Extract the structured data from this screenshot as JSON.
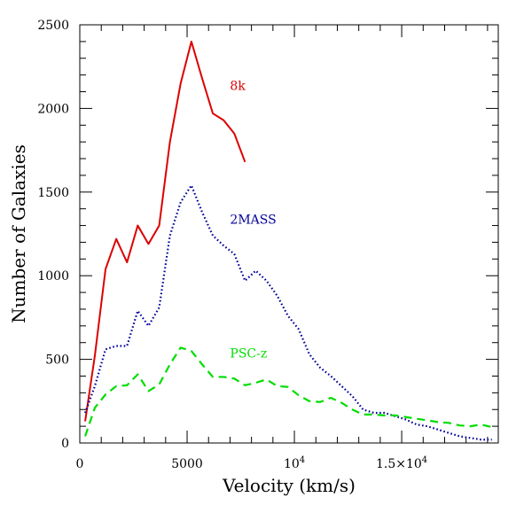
{
  "chart_data": {
    "type": "line",
    "title": "",
    "xlabel": "Velocity (km/s)",
    "ylabel": "Number of Galaxies",
    "xlim": [
      0,
      19500
    ],
    "ylim": [
      0,
      2500
    ],
    "x_major_ticks": [
      {
        "value": 0,
        "label": "0"
      },
      {
        "value": 5000,
        "label": "5000"
      },
      {
        "value": 10000,
        "label": "10",
        "sup": "4"
      },
      {
        "value": 15000,
        "label": "1.5×10",
        "sup": "4"
      }
    ],
    "y_major_ticks": [
      {
        "value": 0,
        "label": "0"
      },
      {
        "value": 500,
        "label": "500"
      },
      {
        "value": 1000,
        "label": "1000"
      },
      {
        "value": 1500,
        "label": "1500"
      },
      {
        "value": 2000,
        "label": "2000"
      },
      {
        "value": 2500,
        "label": "2500"
      }
    ],
    "x_minor_step": 1000,
    "y_minor_step": 100,
    "grid": false,
    "series": [
      {
        "name": "8k",
        "color": "#dd0000",
        "style": "solid",
        "label_at": {
          "x": 7000,
          "y": 2110
        },
        "points": [
          [
            250,
            130
          ],
          [
            700,
            520
          ],
          [
            1200,
            1040
          ],
          [
            1700,
            1220
          ],
          [
            2200,
            1080
          ],
          [
            2700,
            1300
          ],
          [
            3200,
            1190
          ],
          [
            3700,
            1300
          ],
          [
            4200,
            1800
          ],
          [
            4700,
            2150
          ],
          [
            5200,
            2400
          ],
          [
            5700,
            2180
          ],
          [
            6200,
            1970
          ],
          [
            6700,
            1930
          ],
          [
            7200,
            1850
          ],
          [
            7700,
            1680
          ]
        ]
      },
      {
        "name": "2MASS",
        "color": "#000099",
        "style": "dotted",
        "label_at": {
          "x": 7000,
          "y": 1310
        },
        "points": [
          [
            250,
            180
          ],
          [
            700,
            340
          ],
          [
            1200,
            560
          ],
          [
            1700,
            580
          ],
          [
            2200,
            580
          ],
          [
            2700,
            790
          ],
          [
            3200,
            700
          ],
          [
            3700,
            810
          ],
          [
            4200,
            1240
          ],
          [
            4700,
            1440
          ],
          [
            5200,
            1540
          ],
          [
            5700,
            1380
          ],
          [
            6200,
            1240
          ],
          [
            6700,
            1180
          ],
          [
            7200,
            1130
          ],
          [
            7700,
            970
          ],
          [
            8200,
            1030
          ],
          [
            8700,
            970
          ],
          [
            9200,
            880
          ],
          [
            9700,
            760
          ],
          [
            10200,
            680
          ],
          [
            10700,
            530
          ],
          [
            11200,
            450
          ],
          [
            11700,
            400
          ],
          [
            12200,
            340
          ],
          [
            12700,
            280
          ],
          [
            13200,
            200
          ],
          [
            13700,
            180
          ],
          [
            14200,
            180
          ],
          [
            14700,
            160
          ],
          [
            15200,
            140
          ],
          [
            15700,
            110
          ],
          [
            16200,
            100
          ],
          [
            16700,
            80
          ],
          [
            17200,
            60
          ],
          [
            17700,
            40
          ],
          [
            18200,
            30
          ],
          [
            18700,
            20
          ],
          [
            19200,
            20
          ]
        ]
      },
      {
        "name": "PSC-z",
        "color": "#00dd00",
        "style": "dashed",
        "label_at": {
          "x": 7000,
          "y": 510
        },
        "points": [
          [
            250,
            40
          ],
          [
            700,
            210
          ],
          [
            1200,
            290
          ],
          [
            1700,
            340
          ],
          [
            2200,
            345
          ],
          [
            2700,
            410
          ],
          [
            3200,
            310
          ],
          [
            3700,
            350
          ],
          [
            4200,
            470
          ],
          [
            4700,
            570
          ],
          [
            5200,
            550
          ],
          [
            5700,
            470
          ],
          [
            6200,
            395
          ],
          [
            6700,
            395
          ],
          [
            7200,
            385
          ],
          [
            7700,
            345
          ],
          [
            8200,
            360
          ],
          [
            8700,
            380
          ],
          [
            9200,
            340
          ],
          [
            9700,
            335
          ],
          [
            10200,
            285
          ],
          [
            10700,
            250
          ],
          [
            11200,
            245
          ],
          [
            11700,
            270
          ],
          [
            12200,
            240
          ],
          [
            12700,
            200
          ],
          [
            13200,
            170
          ],
          [
            13700,
            170
          ],
          [
            14200,
            165
          ],
          [
            14700,
            165
          ],
          [
            15200,
            155
          ],
          [
            15700,
            145
          ],
          [
            16200,
            135
          ],
          [
            16700,
            125
          ],
          [
            17200,
            120
          ],
          [
            17700,
            105
          ],
          [
            18200,
            100
          ],
          [
            18700,
            110
          ],
          [
            19200,
            95
          ]
        ]
      }
    ]
  }
}
